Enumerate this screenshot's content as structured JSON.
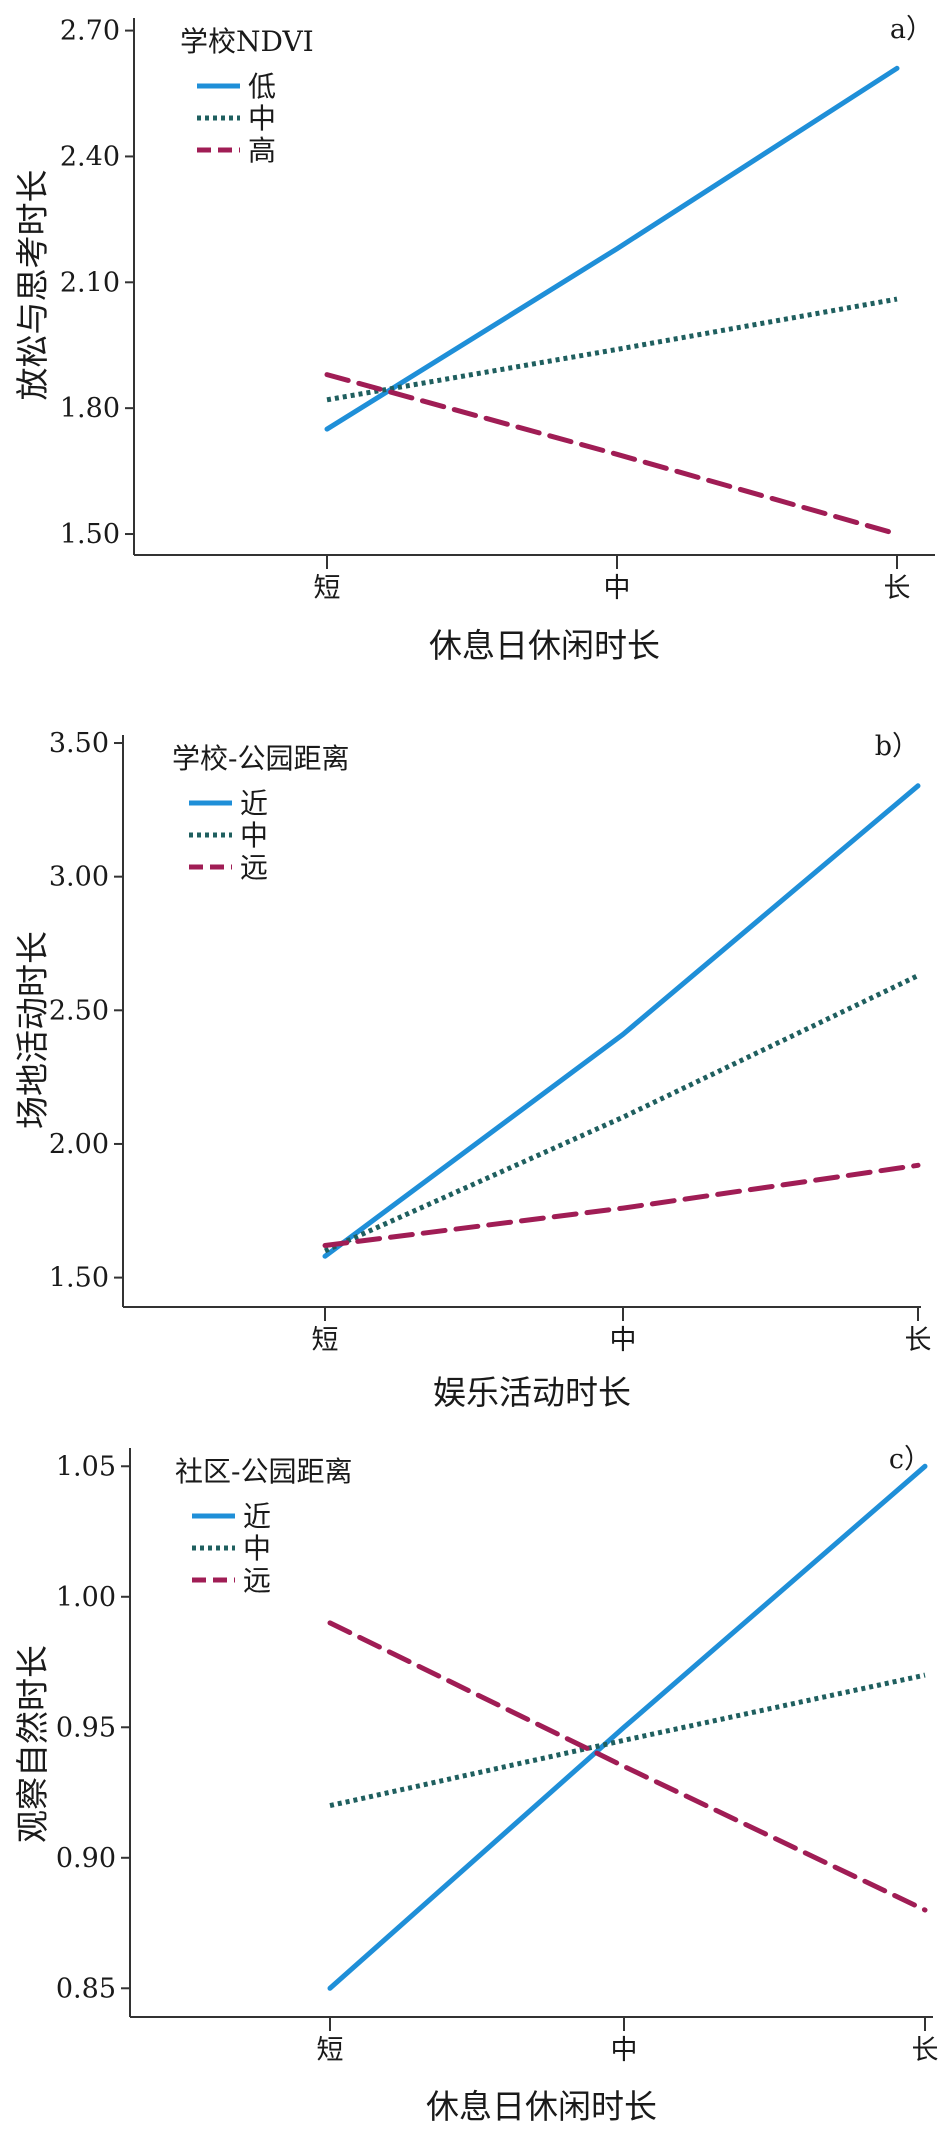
{
  "colors": {
    "high": "#1f8fd8",
    "mid": "#1f5f5f",
    "low": "#a01d55",
    "axis": "#333333"
  },
  "chart_data": [
    {
      "type": "line",
      "panel_label": "a）",
      "legend_title": "学校NDVI",
      "xlabel": "休息日休闲时长",
      "ylabel": "放松与思考时长",
      "categories": [
        "短",
        "中",
        "长"
      ],
      "ylim": [
        1.45,
        2.73
      ],
      "yticks": [
        1.5,
        1.8,
        2.1,
        2.4,
        2.7
      ],
      "ytick_labels": [
        "1.50",
        "1.80",
        "2.10",
        "2.40",
        "2.70"
      ],
      "series": [
        {
          "name": "低",
          "style": "solid",
          "color_key": "high",
          "values": [
            1.75,
            2.18,
            2.61
          ]
        },
        {
          "name": "中",
          "style": "dotted",
          "color_key": "mid",
          "values": [
            1.82,
            1.94,
            2.06
          ]
        },
        {
          "name": "高",
          "style": "dashed",
          "color_key": "low",
          "values": [
            1.88,
            1.69,
            1.5
          ]
        }
      ]
    },
    {
      "type": "line",
      "panel_label": "b）",
      "legend_title": "学校-公园距离",
      "xlabel": "娱乐活动时长",
      "ylabel": "场地活动时长",
      "categories": [
        "短",
        "中",
        "长"
      ],
      "ylim": [
        1.39,
        3.53
      ],
      "yticks": [
        1.5,
        2.0,
        2.5,
        3.0,
        3.5
      ],
      "ytick_labels": [
        "1.50",
        "2.00",
        "2.50",
        "3.00",
        "3.50"
      ],
      "series": [
        {
          "name": "近",
          "style": "solid",
          "color_key": "high",
          "values": [
            1.58,
            2.41,
            3.34
          ]
        },
        {
          "name": "中",
          "style": "dotted",
          "color_key": "mid",
          "values": [
            1.6,
            2.1,
            2.63
          ]
        },
        {
          "name": "远",
          "style": "dashed",
          "color_key": "low",
          "values": [
            1.62,
            1.76,
            1.92
          ]
        }
      ]
    },
    {
      "type": "line",
      "panel_label": "c）",
      "legend_title": "社区-公园距离",
      "xlabel": "休息日休闲时长",
      "ylabel": "观察自然时长",
      "categories": [
        "短",
        "中",
        "长"
      ],
      "ylim": [
        0.839,
        1.057
      ],
      "yticks": [
        0.85,
        0.9,
        0.95,
        1.0,
        1.05
      ],
      "ytick_labels": [
        "0.85",
        "0.90",
        "0.95",
        "1.00",
        "1.05"
      ],
      "series": [
        {
          "name": "近",
          "style": "solid",
          "color_key": "high",
          "values": [
            0.85,
            0.95,
            1.05
          ]
        },
        {
          "name": "中",
          "style": "dotted",
          "color_key": "mid",
          "values": [
            0.92,
            0.945,
            0.97
          ]
        },
        {
          "name": "远",
          "style": "dashed",
          "color_key": "low",
          "values": [
            0.99,
            0.935,
            0.88
          ]
        }
      ]
    }
  ]
}
